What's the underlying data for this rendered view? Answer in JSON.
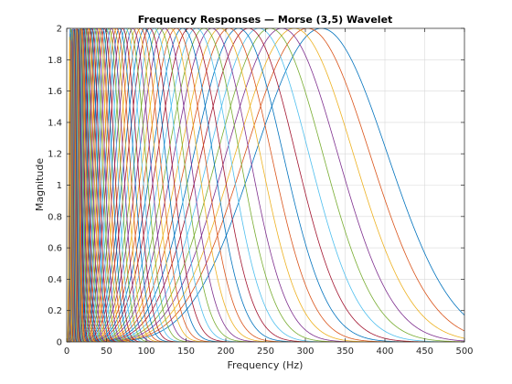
{
  "chart_data": {
    "type": "line",
    "title": "Frequency Responses — Morse (3,5) Wavelet",
    "xlabel": "Frequency (Hz)",
    "ylabel": "Magnitude",
    "xlim": [
      0,
      500
    ],
    "ylim": [
      0,
      2
    ],
    "xticks": [
      "0",
      "50",
      "100",
      "150",
      "200",
      "250",
      "300",
      "350",
      "400",
      "450",
      "500"
    ],
    "yticks": [
      "0",
      "0.2",
      "0.4",
      "0.6",
      "0.8",
      "1",
      "1.2",
      "1.4",
      "1.6",
      "1.8",
      "2"
    ],
    "grid": true,
    "legend": "none",
    "wavelet": {
      "gamma": 3,
      "beta": 5,
      "peak_magnitude": 2
    },
    "series_peak_frequencies": [
      320,
      302.5,
      286,
      270.4,
      255.6,
      241.6,
      228.4,
      215.9,
      204.1,
      193,
      182.4,
      172.5,
      163,
      154.1,
      145.7,
      137.7,
      130.2,
      123.1,
      116.4,
      110,
      104,
      98.3,
      92.9,
      87.9,
      83.1,
      78.5,
      74.2,
      70.2,
      66.4,
      62.7,
      59.3,
      56.1,
      53,
      50.1,
      47.4,
      44.8,
      42.3,
      40,
      37.8,
      35.8,
      33.8,
      32,
      30.2,
      28.6,
      27,
      25.5,
      24.1,
      22.8,
      21.6,
      20.4,
      19.3,
      18.2,
      17.2,
      16.3,
      15.4,
      14.6,
      13.8,
      13,
      12.3,
      11.6,
      11,
      10.4,
      9.8,
      9.3,
      8.8,
      8.3,
      7.9,
      7.4,
      7,
      6.6,
      6.3,
      5.9,
      5.6,
      5.3,
      5,
      4.8,
      4.5,
      4.2,
      4,
      3.8
    ],
    "colors": [
      "#0072bd",
      "#d95319",
      "#edb120",
      "#7e2f8e",
      "#77ac30",
      "#4dbeee",
      "#a2142f"
    ]
  }
}
